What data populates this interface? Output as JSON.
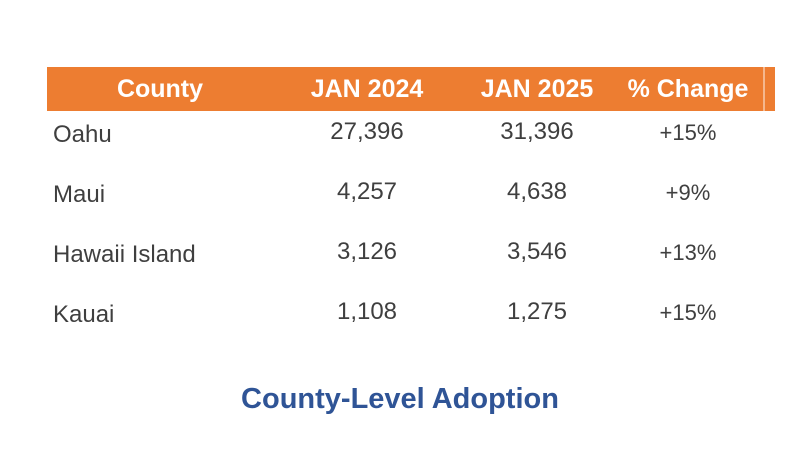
{
  "colors": {
    "header_bg": "#ED7D31",
    "header_text": "#FFFFFF",
    "body_text": "#3F3F3F",
    "caption_text": "#2F5496",
    "background": "#FFFFFF"
  },
  "table": {
    "columns": [
      "County",
      "JAN 2024",
      "JAN 2025",
      "% Change"
    ],
    "rows": [
      {
        "county": "Oahu",
        "jan_2024": "27,396",
        "jan_2025": "31,396",
        "pct_change": "+15%"
      },
      {
        "county": "Maui",
        "jan_2024": "4,257",
        "jan_2025": "4,638",
        "pct_change": "+9%"
      },
      {
        "county": "Hawaii Island",
        "jan_2024": "3,126",
        "jan_2025": "3,546",
        "pct_change": "+13%"
      },
      {
        "county": "Kauai",
        "jan_2024": "1,108",
        "jan_2025": "1,275",
        "pct_change": "+15%"
      }
    ]
  },
  "caption": "County-Level Adoption",
  "chart_data": {
    "type": "table",
    "title": "County-Level Adoption",
    "columns": [
      "County",
      "JAN 2024",
      "JAN 2025",
      "% Change"
    ],
    "rows": [
      [
        "Oahu",
        27396,
        31396,
        "+15%"
      ],
      [
        "Maui",
        4257,
        4638,
        "+9%"
      ],
      [
        "Hawaii Island",
        3126,
        3546,
        "+13%"
      ],
      [
        "Kauai",
        1108,
        1275,
        "+15%"
      ]
    ]
  }
}
